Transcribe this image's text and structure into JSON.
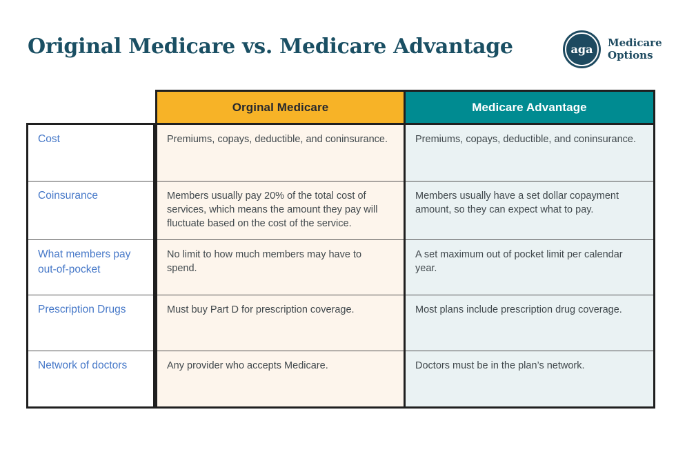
{
  "header": {
    "title": "Original Medicare vs. Medicare Advantage"
  },
  "logo": {
    "monogram": "aga",
    "name_line1": "Medicare",
    "name_line2": "Options"
  },
  "table": {
    "columns": [
      {
        "label": "Orginal Medicare"
      },
      {
        "label": "Medicare Advantage"
      }
    ],
    "rows": [
      {
        "label": "Cost",
        "original_medicare": "Premiums, copays, deductible, and coninsurance.",
        "medicare_advantage": "Premiums, copays, deductible, and coninsurance."
      },
      {
        "label": "Coinsurance",
        "original_medicare": "Members usually pay 20% of the total cost of services, which means the amount they pay will fluctuate based on the cost of the service.",
        "medicare_advantage": "Members usually have a set dollar copayment amount, so they can expect what to pay."
      },
      {
        "label": "What members pay out-of-pocket",
        "original_medicare": "No limit to how much members may have to spend.",
        "medicare_advantage": "A set maximum out of pocket limit per calendar year."
      },
      {
        "label": "Prescription Drugs",
        "original_medicare": "Must buy Part D for prescription coverage.",
        "medicare_advantage": "Most plans include prescription drug coverage."
      },
      {
        "label": "Network of doctors",
        "original_medicare": "Any provider who accepts Medicare.",
        "medicare_advantage": "Doctors must be in the plan’s network."
      }
    ]
  },
  "colors": {
    "title_navy": "#1A4F63",
    "logo_navy": "#1D4A60",
    "header_yellow": "#F7B327",
    "header_teal": "#008B91",
    "cell_cream": "#FDF5EC",
    "cell_light_teal": "#EAF2F3",
    "row_label_blue": "#4678C8",
    "body_text": "#40484C",
    "border_black": "#1F1F1F"
  }
}
